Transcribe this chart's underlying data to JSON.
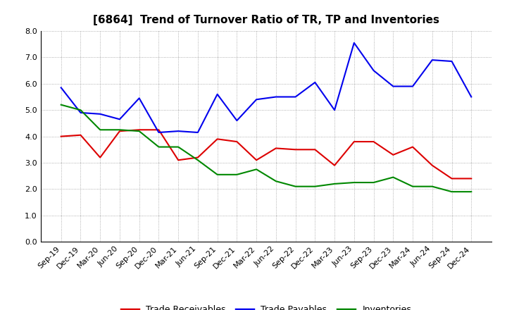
{
  "title": "[6864]  Trend of Turnover Ratio of TR, TP and Inventories",
  "x_labels": [
    "Sep-19",
    "Dec-19",
    "Mar-20",
    "Jun-20",
    "Sep-20",
    "Dec-20",
    "Mar-21",
    "Jun-21",
    "Sep-21",
    "Dec-21",
    "Mar-22",
    "Jun-22",
    "Sep-22",
    "Dec-22",
    "Mar-23",
    "Jun-23",
    "Sep-23",
    "Dec-23",
    "Mar-24",
    "Jun-24",
    "Sep-24",
    "Dec-24"
  ],
  "trade_receivables": [
    4.0,
    4.05,
    3.2,
    4.2,
    4.25,
    4.25,
    3.1,
    3.2,
    3.9,
    3.8,
    3.1,
    3.55,
    3.5,
    3.5,
    2.9,
    3.8,
    3.8,
    3.3,
    3.6,
    2.9,
    2.4,
    2.4
  ],
  "trade_payables": [
    5.85,
    4.9,
    4.85,
    4.65,
    5.45,
    4.15,
    4.2,
    4.15,
    5.6,
    4.6,
    5.4,
    5.5,
    5.5,
    6.05,
    5.0,
    7.55,
    6.5,
    5.9,
    5.9,
    6.9,
    6.85,
    5.5
  ],
  "inventories": [
    5.2,
    5.0,
    4.25,
    4.25,
    4.2,
    3.6,
    3.6,
    3.1,
    2.55,
    2.55,
    2.75,
    2.3,
    2.1,
    2.1,
    2.2,
    2.25,
    2.25,
    2.45,
    2.1,
    2.1,
    1.9,
    1.9
  ],
  "ylim": [
    0.0,
    8.0
  ],
  "yticks": [
    0.0,
    1.0,
    2.0,
    3.0,
    4.0,
    5.0,
    6.0,
    7.0,
    8.0
  ],
  "color_tr": "#dd0000",
  "color_tp": "#0000ee",
  "color_inv": "#008800",
  "legend_labels": [
    "Trade Receivables",
    "Trade Payables",
    "Inventories"
  ],
  "bg_color": "#ffffff",
  "plot_bg_color": "#ffffff",
  "grid_color": "#999999",
  "title_fontsize": 11,
  "axis_fontsize": 8,
  "legend_fontsize": 9
}
